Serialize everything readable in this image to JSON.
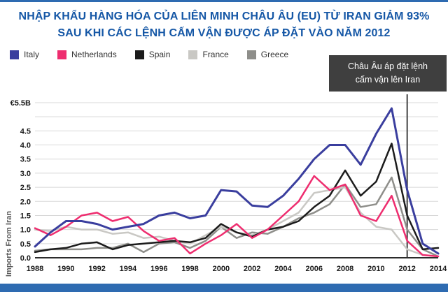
{
  "title": {
    "line1": "NHẬP KHẨU HÀNG HÓA CỦA LIÊN MINH CHÂU ÂU (EU) TỪ IRAN GIẢM 93%",
    "line2": "SAU KHI CÁC LỆNH CẤM VẬN ĐƯỢC ÁP ĐẶT VÀO NĂM 2012"
  },
  "annotation": {
    "line1": "Châu Âu áp đặt lệnh",
    "line2": "cấm vận lên Iran"
  },
  "colors": {
    "title_text": "#1557a6",
    "bottom_bar": "#2e6bb1",
    "annotation_bg": "#3f3f3f",
    "gridline": "#d8d8d8",
    "axis_text": "#1a1a1a"
  },
  "chart_data": {
    "type": "line",
    "title": "Nhập khẩu hàng hóa của Liên minh Châu Âu (EU) từ Iran giảm 93% sau khi các lệnh cấm vận được áp đặt vào năm 2012",
    "xlabel": "",
    "ylabel": "Imports From Iran",
    "legend_position": "top-left",
    "grid": true,
    "ylim": [
      0,
      5.5
    ],
    "annotation_year": 2012,
    "annotation_text": "Châu Âu áp đặt lệnh cấm vận lên Iran",
    "x": [
      1988,
      1989,
      1990,
      1991,
      1992,
      1993,
      1994,
      1995,
      1996,
      1997,
      1998,
      1999,
      2000,
      2001,
      2002,
      2003,
      2004,
      2005,
      2006,
      2007,
      2008,
      2009,
      2010,
      2011,
      2012,
      2013,
      2014
    ],
    "x_tick_labels": [
      1988,
      1990,
      1992,
      1994,
      1996,
      1998,
      2000,
      2002,
      2004,
      2006,
      2008,
      2010,
      2012,
      2014
    ],
    "y_ticks": [
      {
        "value": 5.5,
        "label": "€5.5B"
      },
      {
        "value": 4.5,
        "label": "4.5"
      },
      {
        "value": 4.0,
        "label": "4.0"
      },
      {
        "value": 3.5,
        "label": "3.5"
      },
      {
        "value": 3.0,
        "label": "3.0"
      },
      {
        "value": 2.5,
        "label": "2.5"
      },
      {
        "value": 2.0,
        "label": "2.0"
      },
      {
        "value": 1.5,
        "label": "1.5"
      },
      {
        "value": 1.0,
        "label": "1.0"
      },
      {
        "value": 0.5,
        "label": "0.5"
      },
      {
        "value": 0.0,
        "label": "0.0"
      }
    ],
    "gridline_values": [
      0.5,
      1.0,
      1.5,
      2.0,
      2.5,
      3.0,
      3.5,
      4.0,
      4.5,
      5.0,
      5.5
    ],
    "series": [
      {
        "name": "Italy",
        "color": "#3a3e9e",
        "width": 3,
        "values": [
          0.4,
          0.9,
          1.3,
          1.3,
          1.2,
          1.0,
          1.1,
          1.2,
          1.5,
          1.6,
          1.4,
          1.5,
          2.4,
          2.35,
          1.85,
          1.8,
          2.2,
          2.8,
          3.5,
          4.0,
          4.0,
          3.3,
          4.4,
          5.3,
          2.4,
          0.5,
          0.15
        ]
      },
      {
        "name": "Netherlands",
        "color": "#ee2d6f",
        "width": 2.5,
        "values": [
          1.05,
          0.8,
          1.1,
          1.5,
          1.6,
          1.3,
          1.45,
          0.95,
          0.6,
          0.7,
          0.15,
          0.5,
          0.8,
          1.2,
          0.7,
          1.0,
          1.5,
          2.0,
          2.9,
          2.4,
          2.6,
          1.5,
          1.3,
          2.2,
          0.6,
          0.1,
          0.05
        ]
      },
      {
        "name": "Spain",
        "color": "#1c1c1c",
        "width": 2.5,
        "values": [
          0.2,
          0.3,
          0.35,
          0.5,
          0.55,
          0.3,
          0.45,
          0.5,
          0.55,
          0.6,
          0.55,
          0.7,
          1.2,
          0.9,
          0.75,
          1.0,
          1.1,
          1.3,
          1.8,
          2.2,
          3.1,
          2.2,
          2.7,
          4.05,
          1.5,
          0.3,
          0.35
        ]
      },
      {
        "name": "France",
        "color": "#c9c8c4",
        "width": 2.5,
        "values": [
          1.0,
          0.95,
          1.1,
          1.0,
          1.0,
          0.85,
          0.9,
          0.7,
          0.75,
          0.6,
          0.5,
          0.8,
          1.1,
          0.9,
          0.8,
          1.0,
          1.3,
          1.6,
          2.3,
          2.4,
          2.5,
          1.6,
          1.1,
          1.0,
          0.3,
          0.1,
          0.05
        ]
      },
      {
        "name": "Greece",
        "color": "#8e8e8a",
        "width": 2.5,
        "values": [
          0.25,
          0.3,
          0.3,
          0.3,
          0.35,
          0.35,
          0.5,
          0.2,
          0.5,
          0.55,
          0.35,
          0.6,
          1.1,
          0.7,
          0.9,
          0.85,
          1.1,
          1.4,
          1.6,
          1.9,
          2.6,
          1.8,
          1.9,
          2.85,
          1.0,
          0.3,
          0.05
        ]
      }
    ]
  }
}
